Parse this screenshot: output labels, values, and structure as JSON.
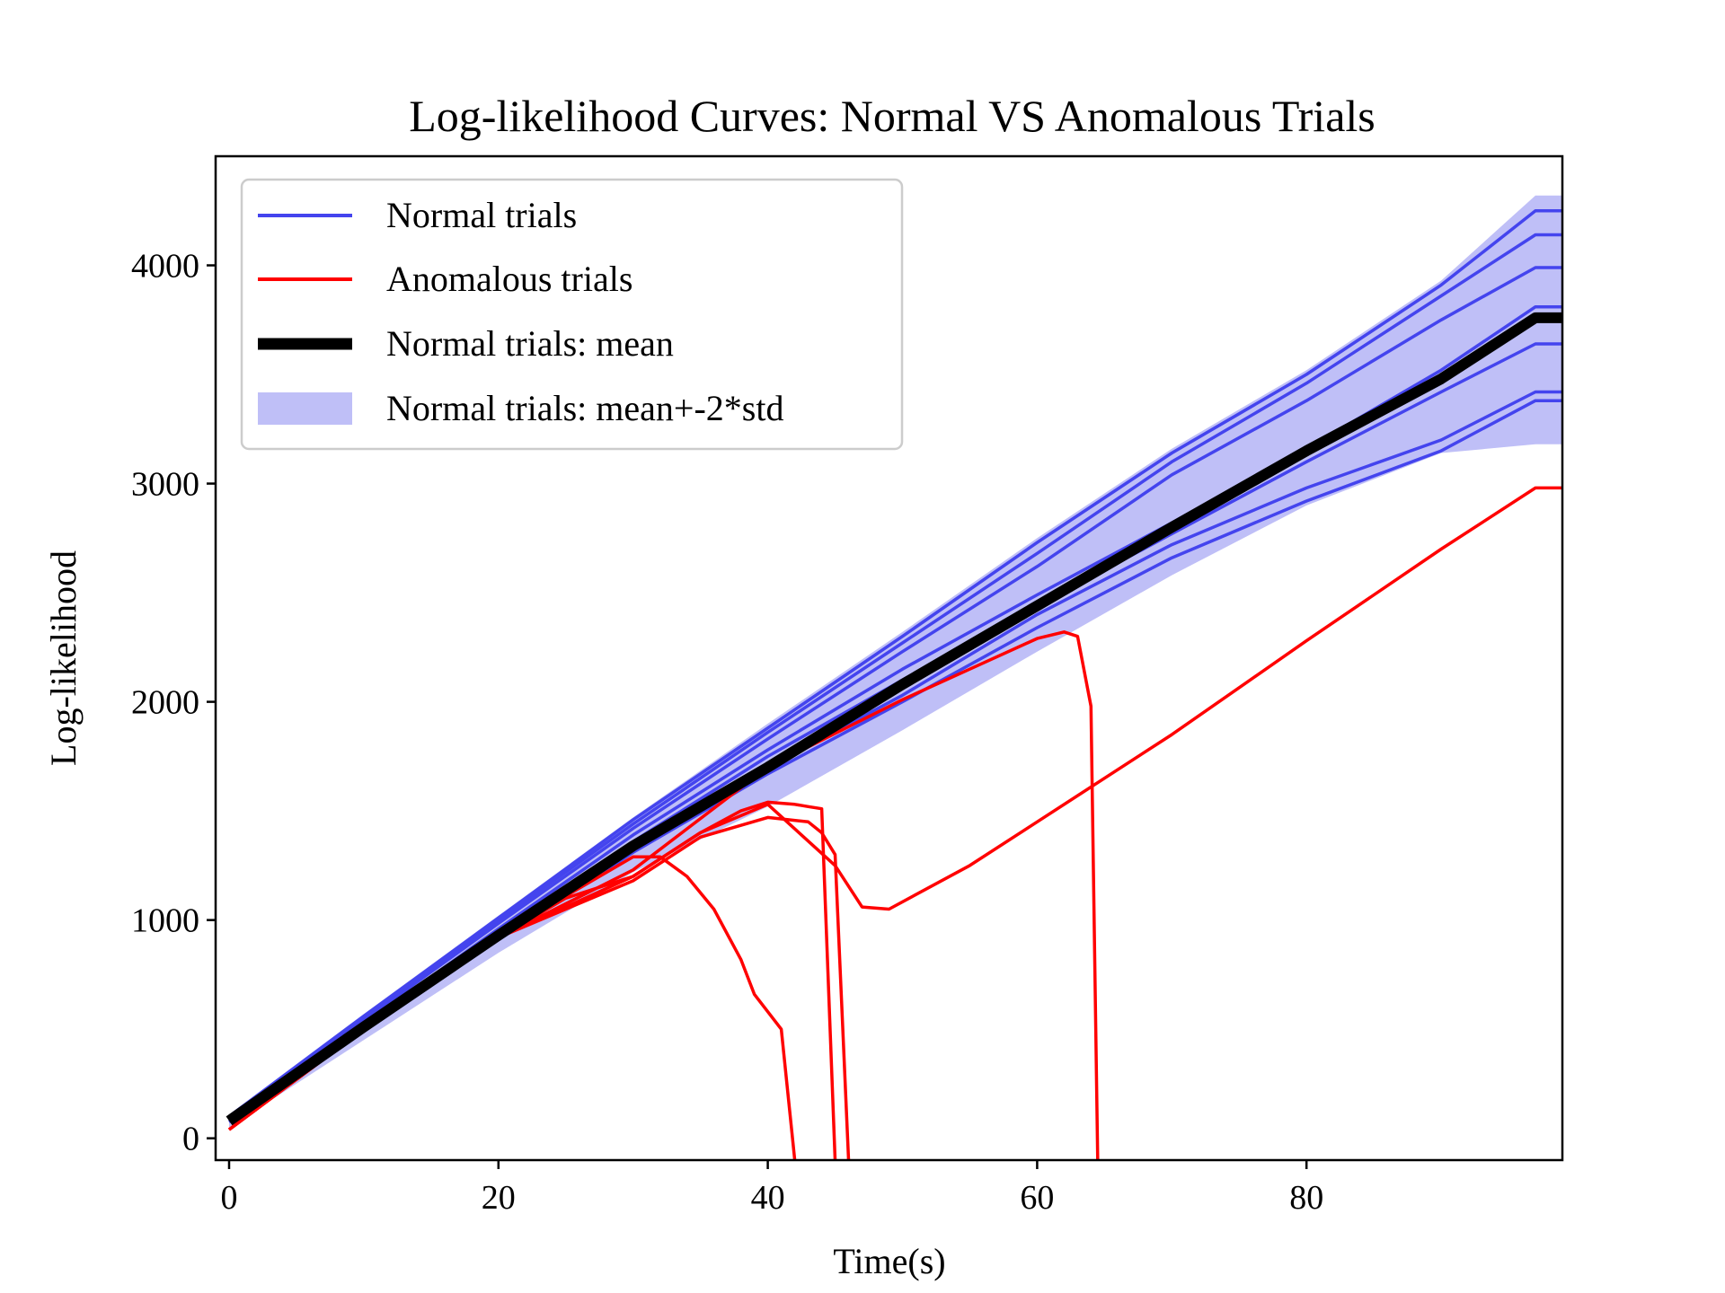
{
  "chart_data": {
    "type": "line",
    "title": "Log-likelihood Curves: Normal VS Anomalous Trials",
    "xlabel": "Time(s)",
    "ylabel": "Log-likelihood",
    "xlim": [
      -1,
      99
    ],
    "ylim": [
      -100,
      4500
    ],
    "xticks": [
      0,
      20,
      40,
      60,
      80
    ],
    "yticks": [
      0,
      1000,
      2000,
      3000,
      4000
    ],
    "grid": false,
    "legend": {
      "placement": "top-left",
      "entries": [
        "Normal trials",
        "Anomalous trials",
        "Normal trials: mean",
        "Normal trials: mean+-2*std"
      ]
    },
    "colors": {
      "normal": "#4444ee",
      "anomalous": "#ff0000",
      "mean": "#000000",
      "band": "#bfbff7"
    },
    "band": {
      "name": "Normal trials: mean+-2*std",
      "x": [
        0,
        10,
        20,
        30,
        40,
        50,
        60,
        70,
        80,
        90,
        97,
        99
      ],
      "upper": [
        110,
        570,
        1020,
        1470,
        1900,
        2320,
        2750,
        3160,
        3520,
        3930,
        4320,
        4320
      ],
      "lower": [
        50,
        450,
        850,
        1220,
        1520,
        1870,
        2230,
        2580,
        2900,
        3140,
        3180,
        3180
      ]
    },
    "normal_series": [
      {
        "x": [
          0,
          10,
          20,
          30,
          40,
          50,
          60,
          70,
          80,
          90,
          97,
          99
        ],
        "y": [
          100,
          560,
          1010,
          1460,
          1880,
          2300,
          2730,
          3140,
          3500,
          3910,
          4250,
          4250
        ]
      },
      {
        "x": [
          0,
          10,
          20,
          30,
          40,
          50,
          60,
          70,
          80,
          90,
          97,
          99
        ],
        "y": [
          100,
          550,
          1000,
          1440,
          1860,
          2270,
          2680,
          3100,
          3460,
          3860,
          4140,
          4140
        ]
      },
      {
        "x": [
          0,
          10,
          20,
          30,
          40,
          50,
          60,
          70,
          80,
          90,
          97,
          99
        ],
        "y": [
          95,
          540,
          985,
          1420,
          1830,
          2230,
          2620,
          3040,
          3380,
          3750,
          3990,
          3990
        ]
      },
      {
        "x": [
          0,
          10,
          20,
          30,
          40,
          50,
          60,
          70,
          80,
          90,
          97,
          99
        ],
        "y": [
          90,
          520,
          960,
          1390,
          1780,
          2150,
          2490,
          2820,
          3160,
          3520,
          3810,
          3810
        ]
      },
      {
        "x": [
          0,
          10,
          20,
          30,
          40,
          50,
          60,
          70,
          80,
          90,
          97,
          99
        ],
        "y": [
          85,
          510,
          940,
          1360,
          1750,
          2100,
          2440,
          2770,
          3100,
          3420,
          3640,
          3640
        ]
      },
      {
        "x": [
          0,
          10,
          20,
          30,
          40,
          50,
          60,
          70,
          80,
          90,
          97,
          99
        ],
        "y": [
          80,
          500,
          920,
          1330,
          1700,
          2030,
          2400,
          2720,
          2980,
          3200,
          3420,
          3420
        ]
      },
      {
        "x": [
          0,
          10,
          20,
          30,
          40,
          50,
          60,
          70,
          80,
          90,
          97,
          99
        ],
        "y": [
          75,
          490,
          910,
          1310,
          1670,
          2000,
          2340,
          2660,
          2920,
          3150,
          3380,
          3380
        ]
      }
    ],
    "mean": {
      "name": "Normal trials: mean",
      "x": [
        0,
        10,
        20,
        30,
        40,
        50,
        60,
        70,
        80,
        90,
        97,
        99
      ],
      "y": [
        80,
        510,
        930,
        1340,
        1700,
        2080,
        2440,
        2800,
        3150,
        3480,
        3760,
        3760
      ]
    },
    "anomalous_series": [
      {
        "x": [
          0,
          10,
          20,
          25,
          30,
          32,
          34,
          36,
          38,
          39,
          41,
          42
        ],
        "y": [
          40,
          500,
          920,
          1110,
          1290,
          1290,
          1200,
          1050,
          820,
          660,
          500,
          -100
        ]
      },
      {
        "x": [
          0,
          10,
          20,
          25,
          30,
          35,
          38,
          40,
          42,
          43,
          44,
          45
        ],
        "y": [
          40,
          500,
          920,
          1100,
          1200,
          1400,
          1500,
          1540,
          1530,
          1520,
          1510,
          -100
        ]
      },
      {
        "x": [
          0,
          10,
          20,
          30,
          35,
          40,
          43,
          44,
          45,
          46
        ],
        "y": [
          40,
          500,
          920,
          1180,
          1380,
          1470,
          1450,
          1400,
          1300,
          -100
        ]
      },
      {
        "x": [
          0,
          10,
          20,
          30,
          35,
          40,
          45,
          47,
          49,
          55,
          60,
          70,
          80,
          90,
          97,
          99
        ],
        "y": [
          40,
          500,
          920,
          1200,
          1400,
          1530,
          1250,
          1060,
          1050,
          1250,
          1450,
          1850,
          2280,
          2700,
          2980,
          2980
        ]
      },
      {
        "x": [
          0,
          10,
          20,
          30,
          40,
          50,
          55,
          60,
          62,
          63,
          64,
          64.5
        ],
        "y": [
          40,
          500,
          920,
          1230,
          1700,
          2010,
          2150,
          2290,
          2320,
          2300,
          1980,
          -100
        ]
      }
    ]
  }
}
